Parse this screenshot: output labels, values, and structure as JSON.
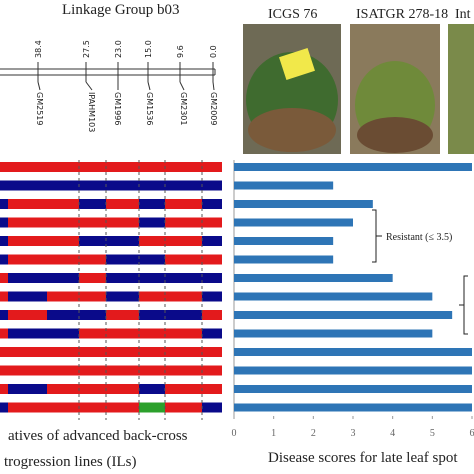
{
  "linkage_map": {
    "title": "Linkage Group b03",
    "markers": [
      {
        "position": "38.4",
        "name": "GM2519"
      },
      {
        "position": "27.5",
        "name": "IPAHM103"
      },
      {
        "position": "23.0",
        "name": "GM1996"
      },
      {
        "position": "15.0",
        "name": "GM1536"
      },
      {
        "position": "9.6",
        "name": "GM2301"
      },
      {
        "position": "0.0",
        "name": "GM2009"
      }
    ]
  },
  "photos": [
    "ICGS 76",
    "ISATGR 278-18",
    "Int"
  ],
  "genotypes": {
    "caption": [
      "atives of advanced back-cross",
      "trogression lines (ILs)"
    ],
    "rows": [
      [
        "#e31a1c",
        "#e31a1c",
        "#e31a1c",
        "#e31a1c",
        "#e31a1c",
        "#e31a1c",
        "#e31a1c",
        "#e31a1c"
      ],
      [
        "#0a0a8a",
        "#0a0a8a",
        "#0a0a8a",
        "#0a0a8a",
        "#0a0a8a",
        "#0a0a8a",
        "#0a0a8a",
        "#0a0a8a"
      ],
      [
        "#0a0a8a",
        "#e31a1c",
        "#e31a1c",
        "#0a0a8a",
        "#e31a1c",
        "#0a0a8a",
        "#e31a1c",
        "#0a0a8a"
      ],
      [
        "#0a0a8a",
        "#e31a1c",
        "#e31a1c",
        "#e31a1c",
        "#e31a1c",
        "#0a0a8a",
        "#e31a1c",
        "#e31a1c"
      ],
      [
        "#0a0a8a",
        "#e31a1c",
        "#e31a1c",
        "#0a0a8a",
        "#0a0a8a",
        "#e31a1c",
        "#e31a1c",
        "#0a0a8a"
      ],
      [
        "#0a0a8a",
        "#e31a1c",
        "#e31a1c",
        "#e31a1c",
        "#0a0a8a",
        "#0a0a8a",
        "#e31a1c",
        "#e31a1c"
      ],
      [
        "#e31a1c",
        "#0a0a8a",
        "#0a0a8a",
        "#e31a1c",
        "#0a0a8a",
        "#0a0a8a",
        "#0a0a8a",
        "#0a0a8a"
      ],
      [
        "#e31a1c",
        "#0a0a8a",
        "#e31a1c",
        "#e31a1c",
        "#0a0a8a",
        "#e31a1c",
        "#e31a1c",
        "#0a0a8a"
      ],
      [
        "#0a0a8a",
        "#e31a1c",
        "#0a0a8a",
        "#0a0a8a",
        "#e31a1c",
        "#0a0a8a",
        "#0a0a8a",
        "#e31a1c"
      ],
      [
        "#e31a1c",
        "#0a0a8a",
        "#0a0a8a",
        "#e31a1c",
        "#e31a1c",
        "#e31a1c",
        "#e31a1c",
        "#0a0a8a"
      ],
      [
        "#e31a1c",
        "#e31a1c",
        "#e31a1c",
        "#e31a1c",
        "#e31a1c",
        "#e31a1c",
        "#e31a1c",
        "#e31a1c"
      ],
      [
        "#e31a1c",
        "#e31a1c",
        "#e31a1c",
        "#e31a1c",
        "#e31a1c",
        "#e31a1c",
        "#e31a1c",
        "#e31a1c"
      ],
      [
        "#e31a1c",
        "#0a0a8a",
        "#e31a1c",
        "#e31a1c",
        "#e31a1c",
        "#0a0a8a",
        "#e31a1c",
        "#e31a1c"
      ],
      [
        "#0a0a8a",
        "#e31a1c",
        "#e31a1c",
        "#e31a1c",
        "#e31a1c",
        "#2ca02c",
        "#e31a1c",
        "#0a0a8a"
      ]
    ]
  },
  "chart_data": {
    "type": "hbar",
    "x_label": "Disease scores for late leaf spot",
    "annotation": "Resistant (≤ 3.5)",
    "values": [
      6,
      2.5,
      3.5,
      3,
      2.5,
      2.5,
      4,
      5,
      5.5,
      5,
      6,
      6,
      6,
      6
    ],
    "color": "#2e75b6",
    "xlim": [
      0,
      6
    ],
    "xticks": [
      0,
      1,
      2,
      3,
      4,
      5,
      6
    ]
  }
}
